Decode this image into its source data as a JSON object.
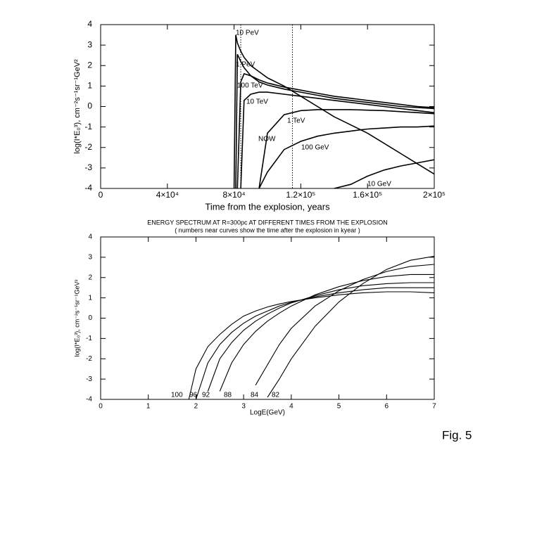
{
  "chart_data": [
    {
      "type": "line",
      "x_label": "Time from the explosion, years",
      "y_label": "log(I*E₀³), cm⁻²s⁻¹sr⁻¹GeV²",
      "x": [
        80000,
        81000,
        82000,
        84000,
        86000,
        90000,
        95000,
        100000,
        110000,
        120000,
        130000,
        140000,
        150000,
        160000,
        170000,
        180000,
        190000,
        200000
      ],
      "series": [
        {
          "name": "10 PeV",
          "color": "#000000",
          "values": [
            -4,
            3.5,
            3.1,
            2.7,
            2.4,
            2.0,
            1.7,
            1.4,
            1.0,
            0.5,
            0.0,
            -0.5,
            -0.9,
            -1.3,
            -1.8,
            -2.3,
            -2.8,
            -3.3
          ]
        },
        {
          "name": "1 PeV",
          "color": "#000000",
          "values": [
            null,
            -4,
            2.55,
            2.2,
            1.9,
            1.5,
            1.2,
            1.05,
            0.85,
            0.7,
            0.55,
            0.4,
            0.3,
            0.2,
            0.1,
            0.0,
            -0.05,
            -0.1
          ]
        },
        {
          "name": "100 TeV",
          "color": "#000000",
          "values": [
            null,
            null,
            -4,
            1.2,
            1.6,
            1.5,
            1.3,
            1.15,
            0.95,
            0.8,
            0.65,
            0.5,
            0.4,
            0.3,
            0.2,
            0.1,
            0.0,
            -0.05
          ]
        },
        {
          "name": "10 TeV",
          "color": "#000000",
          "values": [
            null,
            null,
            null,
            -4,
            0.3,
            0.6,
            0.7,
            0.7,
            0.6,
            0.5,
            0.4,
            0.3,
            0.2,
            0.1,
            0.0,
            -0.1,
            -0.2,
            -0.3
          ]
        },
        {
          "name": "1 TeV",
          "color": "#000000",
          "values": [
            null,
            null,
            null,
            null,
            null,
            null,
            -4,
            -1.3,
            -0.4,
            -0.2,
            -0.15,
            -0.15,
            -0.15,
            -0.18,
            -0.2,
            -0.25,
            -0.3,
            -0.35
          ]
        },
        {
          "name": "100 GeV",
          "color": "#000000",
          "values": [
            null,
            null,
            null,
            null,
            null,
            null,
            -4,
            -3.2,
            -2.1,
            -1.7,
            -1.45,
            -1.3,
            -1.2,
            -1.1,
            -1.05,
            -1.0,
            -1.0,
            -0.95
          ]
        },
        {
          "name": "10 GeV",
          "color": "#000000",
          "values": [
            null,
            null,
            null,
            null,
            null,
            null,
            null,
            null,
            null,
            null,
            null,
            -4,
            -3.8,
            -3.4,
            -3.1,
            -2.9,
            -2.75,
            -2.6
          ]
        }
      ],
      "annotations": [
        "NOW"
      ],
      "vlines": [
        84000,
        115000
      ],
      "xlim": [
        0,
        200000
      ],
      "xticks": [
        0,
        {
          "value": 40000,
          "label": "4×10⁴"
        },
        {
          "value": 80000,
          "label": "8×10⁴"
        },
        {
          "value": 120000,
          "label": "1.2×10⁵"
        },
        {
          "value": 160000,
          "label": "1.6×10⁵"
        },
        {
          "value": 200000,
          "label": "2×10⁵"
        }
      ],
      "ylim": [
        -4,
        4
      ],
      "yticks": [
        -4,
        -3,
        -2,
        -1,
        0,
        1,
        2,
        3,
        4
      ]
    },
    {
      "type": "line",
      "title": "ENERGY SPECTRUM AT R=300pc AT DIFFERENT TIMES FROM THE EXPLOSION",
      "subtitle": "( numbers near curves  show the time after the explosion in kyear )",
      "x_label": "LogE(GeV)",
      "y_label": "log(I*E₀³), cm⁻²s⁻¹sr⁻¹GeV²",
      "x": [
        1.85,
        2,
        2.25,
        2.5,
        2.75,
        3,
        3.25,
        3.5,
        3.75,
        4,
        4.5,
        5,
        5.5,
        6,
        6.5,
        7
      ],
      "series": [
        {
          "name": "100",
          "color": "#000000",
          "values": [
            -4,
            -2.5,
            -1.4,
            -0.8,
            -0.3,
            0.1,
            0.35,
            0.55,
            0.7,
            0.82,
            1.0,
            1.15,
            1.25,
            1.3,
            1.3,
            1.25
          ]
        },
        {
          "name": "96",
          "color": "#000000",
          "values": [
            null,
            -4,
            -2.2,
            -1.3,
            -0.7,
            -0.25,
            0.1,
            0.35,
            0.6,
            0.78,
            1.05,
            1.25,
            1.4,
            1.5,
            1.5,
            1.5
          ]
        },
        {
          "name": "92",
          "color": "#000000",
          "values": [
            null,
            null,
            -3.6,
            -2.0,
            -1.2,
            -0.6,
            -0.15,
            0.2,
            0.5,
            0.75,
            1.1,
            1.4,
            1.6,
            1.7,
            1.75,
            1.75
          ]
        },
        {
          "name": "88",
          "color": "#000000",
          "values": [
            null,
            null,
            null,
            -3.6,
            -2.2,
            -1.3,
            -0.65,
            -0.15,
            0.25,
            0.6,
            1.15,
            1.55,
            1.85,
            2.05,
            2.15,
            2.15
          ]
        },
        {
          "name": "84",
          "color": "#000000",
          "values": [
            null,
            null,
            null,
            null,
            null,
            null,
            -3.3,
            -2.3,
            -1.3,
            -0.5,
            0.6,
            1.35,
            1.9,
            2.3,
            2.55,
            2.65
          ]
        },
        {
          "name": "82",
          "color": "#000000",
          "values": [
            null,
            null,
            null,
            null,
            null,
            null,
            null,
            -3.9,
            -3.0,
            -2.0,
            -0.4,
            0.8,
            1.7,
            2.4,
            2.85,
            3.05
          ]
        }
      ],
      "xlim": [
        0,
        7
      ],
      "xticks": [
        0,
        1,
        2,
        3,
        4,
        5,
        6,
        7
      ],
      "ylim": [
        -4,
        4
      ],
      "yticks": [
        -4,
        -3,
        -2,
        -1,
        0,
        1,
        2,
        3,
        4
      ]
    }
  ],
  "caption": "Fig. 5"
}
